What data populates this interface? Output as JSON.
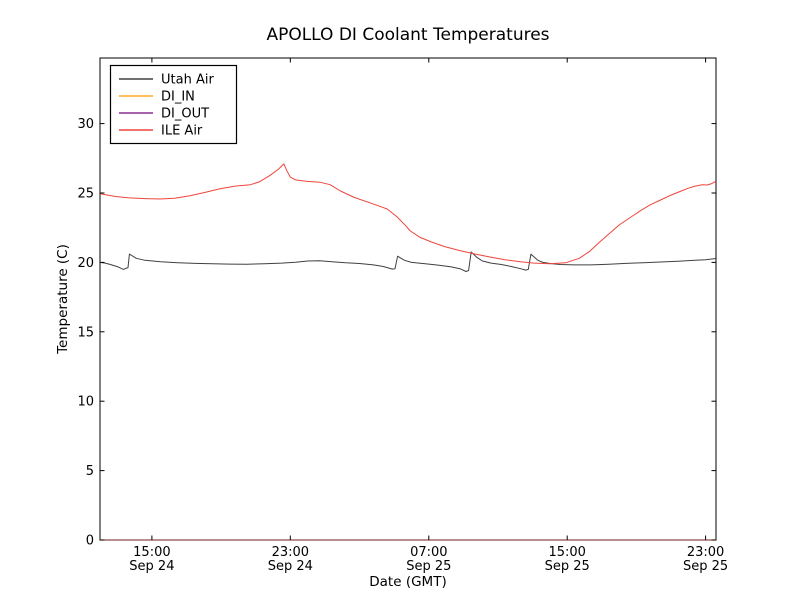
{
  "figure": {
    "background": "#ffffff",
    "text_color": "#000000"
  },
  "chart_data": {
    "type": "line",
    "title": "APOLLO DI Coolant Temperatures",
    "xlabel": "Date (GMT)",
    "ylabel": "Temperature (C)",
    "x_unit": "hours after Sep 24 12:00 GMT",
    "xlim": [
      0,
      35.6
    ],
    "ylim": [
      0,
      34.73
    ],
    "grid": false,
    "legend_position": "upper-left",
    "x_ticks": [
      {
        "pos": 3,
        "time": "15:00",
        "date": "Sep 24"
      },
      {
        "pos": 11,
        "time": "23:00",
        "date": "Sep 24"
      },
      {
        "pos": 19,
        "time": "07:00",
        "date": "Sep 25"
      },
      {
        "pos": 27,
        "time": "15:00",
        "date": "Sep 25"
      },
      {
        "pos": 35,
        "time": "23:00",
        "date": "Sep 25"
      }
    ],
    "y_ticks": [
      0,
      5,
      10,
      15,
      20,
      25,
      30
    ],
    "series": [
      {
        "name": "Utah Air",
        "color": "#404040",
        "points": [
          [
            0,
            20.0
          ],
          [
            0.3,
            19.95
          ],
          [
            0.6,
            19.85
          ],
          [
            1.0,
            19.7
          ],
          [
            1.35,
            19.5
          ],
          [
            1.55,
            19.6
          ],
          [
            1.62,
            19.62
          ],
          [
            1.7,
            20.6
          ],
          [
            2.1,
            20.3
          ],
          [
            2.6,
            20.15
          ],
          [
            3.5,
            20.05
          ],
          [
            4.5,
            19.98
          ],
          [
            5.5,
            19.93
          ],
          [
            6.5,
            19.9
          ],
          [
            7.5,
            19.88
          ],
          [
            8.5,
            19.87
          ],
          [
            9.5,
            19.9
          ],
          [
            10.5,
            19.95
          ],
          [
            11.3,
            20.02
          ],
          [
            12.0,
            20.1
          ],
          [
            12.7,
            20.12
          ],
          [
            13.4,
            20.05
          ],
          [
            14.2,
            19.97
          ],
          [
            15.0,
            19.92
          ],
          [
            15.8,
            19.82
          ],
          [
            16.4,
            19.7
          ],
          [
            16.9,
            19.52
          ],
          [
            17.05,
            19.55
          ],
          [
            17.2,
            20.45
          ],
          [
            17.6,
            20.15
          ],
          [
            18.0,
            20.0
          ],
          [
            18.8,
            19.9
          ],
          [
            19.6,
            19.8
          ],
          [
            20.3,
            19.68
          ],
          [
            20.8,
            19.55
          ],
          [
            21.15,
            19.35
          ],
          [
            21.3,
            19.42
          ],
          [
            21.45,
            20.75
          ],
          [
            21.8,
            20.35
          ],
          [
            22.1,
            20.1
          ],
          [
            22.6,
            19.95
          ],
          [
            23.2,
            19.85
          ],
          [
            23.8,
            19.7
          ],
          [
            24.3,
            19.55
          ],
          [
            24.6,
            19.45
          ],
          [
            24.75,
            19.5
          ],
          [
            24.9,
            20.6
          ],
          [
            25.3,
            20.15
          ],
          [
            25.6,
            20.0
          ],
          [
            26.0,
            19.92
          ],
          [
            26.6,
            19.85
          ],
          [
            27.4,
            19.82
          ],
          [
            28.4,
            19.82
          ],
          [
            29.4,
            19.87
          ],
          [
            30.4,
            19.93
          ],
          [
            31.4,
            19.98
          ],
          [
            32.4,
            20.03
          ],
          [
            33.4,
            20.08
          ],
          [
            34.4,
            20.15
          ],
          [
            35.0,
            20.2
          ],
          [
            35.6,
            20.28
          ]
        ]
      },
      {
        "name": "DI_IN",
        "color": "#ffaa22",
        "points": [
          [
            0,
            0
          ],
          [
            35.6,
            0
          ]
        ]
      },
      {
        "name": "DI_OUT",
        "color": "#8a2f94",
        "points": [
          [
            0,
            0
          ],
          [
            35.6,
            0
          ]
        ]
      },
      {
        "name": "ILE Air",
        "color": "#ee453c",
        "points": [
          [
            0,
            24.95
          ],
          [
            0.9,
            24.75
          ],
          [
            1.7,
            24.65
          ],
          [
            2.6,
            24.6
          ],
          [
            3.5,
            24.57
          ],
          [
            4.3,
            24.63
          ],
          [
            5.2,
            24.8
          ],
          [
            6.1,
            25.05
          ],
          [
            6.9,
            25.3
          ],
          [
            7.8,
            25.5
          ],
          [
            8.7,
            25.6
          ],
          [
            9.2,
            25.8
          ],
          [
            9.8,
            26.25
          ],
          [
            10.3,
            26.7
          ],
          [
            10.63,
            27.1
          ],
          [
            10.8,
            26.6
          ],
          [
            11.0,
            26.15
          ],
          [
            11.3,
            25.95
          ],
          [
            11.9,
            25.85
          ],
          [
            12.7,
            25.78
          ],
          [
            13.3,
            25.6
          ],
          [
            13.9,
            25.15
          ],
          [
            14.7,
            24.68
          ],
          [
            15.6,
            24.3
          ],
          [
            16.6,
            23.85
          ],
          [
            17.15,
            23.3
          ],
          [
            17.7,
            22.6
          ],
          [
            17.9,
            22.3
          ],
          [
            18.5,
            21.8
          ],
          [
            19.1,
            21.5
          ],
          [
            19.9,
            21.15
          ],
          [
            20.8,
            20.85
          ],
          [
            21.7,
            20.6
          ],
          [
            22.5,
            20.4
          ],
          [
            23.4,
            20.2
          ],
          [
            24.3,
            20.05
          ],
          [
            25.1,
            19.95
          ],
          [
            26.0,
            19.9
          ],
          [
            26.9,
            19.97
          ],
          [
            27.7,
            20.3
          ],
          [
            28.3,
            20.8
          ],
          [
            28.9,
            21.5
          ],
          [
            29.5,
            22.15
          ],
          [
            30.0,
            22.7
          ],
          [
            30.6,
            23.2
          ],
          [
            31.2,
            23.7
          ],
          [
            31.8,
            24.15
          ],
          [
            32.4,
            24.5
          ],
          [
            33.0,
            24.85
          ],
          [
            33.5,
            25.1
          ],
          [
            34.0,
            25.35
          ],
          [
            34.4,
            25.5
          ],
          [
            34.8,
            25.6
          ],
          [
            35.1,
            25.58
          ],
          [
            35.35,
            25.68
          ],
          [
            35.6,
            25.85
          ]
        ]
      }
    ]
  }
}
